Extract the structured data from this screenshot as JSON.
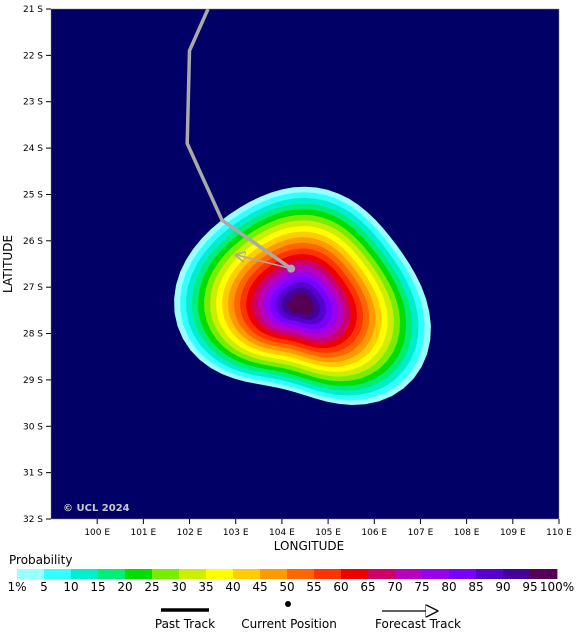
{
  "map": {
    "background_color": "#000066",
    "credit": "© UCL 2024",
    "x_axis_title": "LONGITUDE",
    "y_axis_title": "LATITUDE",
    "lon_ticks": [
      "100 E",
      "101 E",
      "102 E",
      "103 E",
      "104 E",
      "105 E",
      "106 E",
      "107 E",
      "108 E",
      "109 E",
      "110 E"
    ],
    "lat_ticks": [
      "21 S",
      "22 S",
      "23 S",
      "24 S",
      "25 S",
      "26 S",
      "27 S",
      "28 S",
      "29 S",
      "30 S",
      "31 S",
      "32 S"
    ],
    "lon_range": [
      99.0,
      110.0
    ],
    "lat_range": [
      -21.0,
      -32.0
    ]
  },
  "past_track": {
    "color": "#aaaaaa",
    "points": [
      [
        102.4,
        -21.0
      ],
      [
        102.0,
        -21.9
      ],
      [
        101.95,
        -23.9
      ],
      [
        102.7,
        -25.55
      ],
      [
        104.2,
        -26.6
      ]
    ]
  },
  "current_position": {
    "lon": 104.2,
    "lat": -26.6
  },
  "forecast_track": {
    "color": "#aaaaaa",
    "points": [
      [
        104.2,
        -26.6
      ],
      [
        103.0,
        -26.3
      ]
    ]
  },
  "probability": {
    "center_lon": 104.5,
    "center_lat": -27.25,
    "max_radius_deg": 4.2
  },
  "legend": {
    "title": "Probability",
    "labels": [
      "1%",
      "5",
      "10",
      "15",
      "20",
      "25",
      "30",
      "35",
      "40",
      "45",
      "50",
      "55",
      "60",
      "65",
      "70",
      "75",
      "80",
      "85",
      "90",
      "95",
      "100%"
    ],
    "colors": [
      "#99ffff",
      "#33ffff",
      "#00eecc",
      "#00ee77",
      "#00dd00",
      "#77ee00",
      "#ccee00",
      "#ffff00",
      "#ffcc00",
      "#ff9900",
      "#ff6600",
      "#ff3300",
      "#ee0000",
      "#cc0066",
      "#bb00bb",
      "#9900ee",
      "#7700ff",
      "#5500cc",
      "#440099",
      "#550055"
    ],
    "past_track_label": "Past Track",
    "current_position_label": "Current Position",
    "forecast_track_label": "Forecast Track"
  }
}
